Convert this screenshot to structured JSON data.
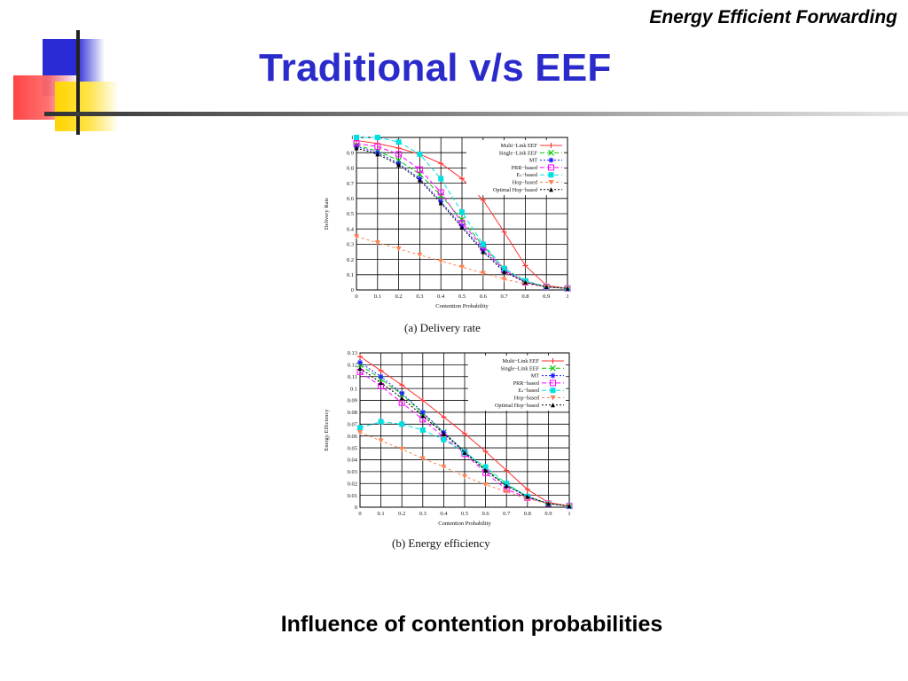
{
  "header": {
    "corner_title": "Energy Efficient Forwarding",
    "title": "Traditional v/s EEF"
  },
  "footer": {
    "caption": "Influence of contention probabilities"
  },
  "theme": {
    "title_color": "#2b2bcc"
  },
  "chart_data": [
    {
      "type": "line",
      "caption": "(a) Delivery rate",
      "xlabel": "Contention Probability",
      "ylabel": "Delivery Rate",
      "xlim": [
        0,
        1
      ],
      "ylim": [
        0,
        1
      ],
      "x_ticks": [
        0,
        0.1,
        0.2,
        0.3,
        0.4,
        0.5,
        0.6,
        0.7,
        0.8,
        0.9,
        1
      ],
      "y_ticks": [
        0,
        0.1,
        0.2,
        0.3,
        0.4,
        0.5,
        0.6,
        0.7,
        0.8,
        0.9,
        1
      ],
      "grid": true,
      "legend_position": "top-right",
      "x": [
        0,
        0.1,
        0.2,
        0.3,
        0.4,
        0.5,
        0.6,
        0.7,
        0.8,
        0.9,
        1
      ],
      "series": [
        {
          "name": "Multi−Link EEF",
          "color": "#ff3030",
          "marker": "plus",
          "dash": "",
          "values": [
            0.98,
            0.96,
            0.93,
            0.89,
            0.83,
            0.73,
            0.59,
            0.38,
            0.16,
            0.03,
            0.01
          ]
        },
        {
          "name": "Single−Link EEF",
          "color": "#00c800",
          "marker": "x",
          "dash": "5,3",
          "values": [
            0.95,
            0.91,
            0.85,
            0.76,
            0.62,
            0.46,
            0.29,
            0.14,
            0.06,
            0.02,
            0.01
          ]
        },
        {
          "name": "MT",
          "color": "#2020ff",
          "marker": "asterisk",
          "dash": "2,2",
          "values": [
            0.94,
            0.9,
            0.83,
            0.73,
            0.58,
            0.42,
            0.26,
            0.13,
            0.05,
            0.02,
            0.01
          ]
        },
        {
          "name": "PRR−based",
          "color": "#ff00ff",
          "marker": "square",
          "dash": "5,3",
          "values": [
            0.96,
            0.94,
            0.89,
            0.79,
            0.64,
            0.44,
            0.28,
            0.13,
            0.05,
            0.02,
            0.01
          ]
        },
        {
          "name": "Eₛ−based",
          "color": "#00e0e0",
          "marker": "filled-square",
          "dash": "5,3",
          "values": [
            1.0,
            1.0,
            0.97,
            0.89,
            0.73,
            0.51,
            0.3,
            0.14,
            0.06,
            0.02,
            0.01
          ]
        },
        {
          "name": "Hop−based",
          "color": "#ff8050",
          "marker": "triangle-down",
          "dash": "3,3",
          "values": [
            0.35,
            0.31,
            0.27,
            0.23,
            0.19,
            0.15,
            0.11,
            0.07,
            0.04,
            0.02,
            0.01
          ]
        },
        {
          "name": "Optimal Hop−based",
          "color": "#000000",
          "marker": "triangle",
          "dash": "2,2",
          "values": [
            0.93,
            0.89,
            0.82,
            0.72,
            0.57,
            0.41,
            0.25,
            0.12,
            0.05,
            0.02,
            0.01
          ]
        }
      ]
    },
    {
      "type": "line",
      "caption": "(b) Energy efficiency",
      "xlabel": "Contention Probability",
      "ylabel": "Energy Efficiency",
      "xlim": [
        0,
        1
      ],
      "ylim": [
        0,
        0.13
      ],
      "x_ticks": [
        0,
        0.1,
        0.2,
        0.3,
        0.4,
        0.5,
        0.6,
        0.7,
        0.8,
        0.9,
        1
      ],
      "y_ticks": [
        0,
        0.01,
        0.02,
        0.03,
        0.04,
        0.05,
        0.06,
        0.07,
        0.08,
        0.09,
        0.1,
        0.11,
        0.12,
        0.13
      ],
      "grid": true,
      "legend_position": "top-right",
      "x": [
        0,
        0.1,
        0.2,
        0.3,
        0.4,
        0.5,
        0.6,
        0.7,
        0.8,
        0.9,
        1
      ],
      "series": [
        {
          "name": "Multi−Link EEF",
          "color": "#ff3030",
          "marker": "plus",
          "dash": "",
          "values": [
            0.127,
            0.115,
            0.103,
            0.09,
            0.076,
            0.062,
            0.047,
            0.031,
            0.015,
            0.004,
            0.001
          ]
        },
        {
          "name": "Single−Link EEF",
          "color": "#00c800",
          "marker": "x",
          "dash": "5,3",
          "values": [
            0.12,
            0.108,
            0.095,
            0.079,
            0.063,
            0.047,
            0.032,
            0.019,
            0.009,
            0.003,
            0.001
          ]
        },
        {
          "name": "MT",
          "color": "#2020ff",
          "marker": "asterisk",
          "dash": "2,2",
          "values": [
            0.122,
            0.11,
            0.096,
            0.08,
            0.063,
            0.047,
            0.031,
            0.018,
            0.009,
            0.003,
            0.001
          ]
        },
        {
          "name": "PRR−based",
          "color": "#ff00ff",
          "marker": "square",
          "dash": "5,3",
          "values": [
            0.114,
            0.102,
            0.088,
            0.074,
            0.059,
            0.045,
            0.029,
            0.015,
            0.008,
            0.003,
            0.001
          ]
        },
        {
          "name": "Eₛ−based",
          "color": "#00e0e0",
          "marker": "filled-square",
          "dash": "5,3",
          "values": [
            0.067,
            0.072,
            0.07,
            0.065,
            0.057,
            0.046,
            0.034,
            0.02,
            0.009,
            0.003,
            0.001
          ]
        },
        {
          "name": "Hop−based",
          "color": "#ff8050",
          "marker": "triangle-down",
          "dash": "3,3",
          "values": [
            0.063,
            0.056,
            0.049,
            0.041,
            0.034,
            0.026,
            0.019,
            0.013,
            0.007,
            0.003,
            0.001
          ]
        },
        {
          "name": "Optimal Hop−based",
          "color": "#000000",
          "marker": "triangle",
          "dash": "2,2",
          "values": [
            0.117,
            0.105,
            0.092,
            0.077,
            0.062,
            0.046,
            0.031,
            0.018,
            0.009,
            0.003,
            0.001
          ]
        }
      ]
    }
  ]
}
